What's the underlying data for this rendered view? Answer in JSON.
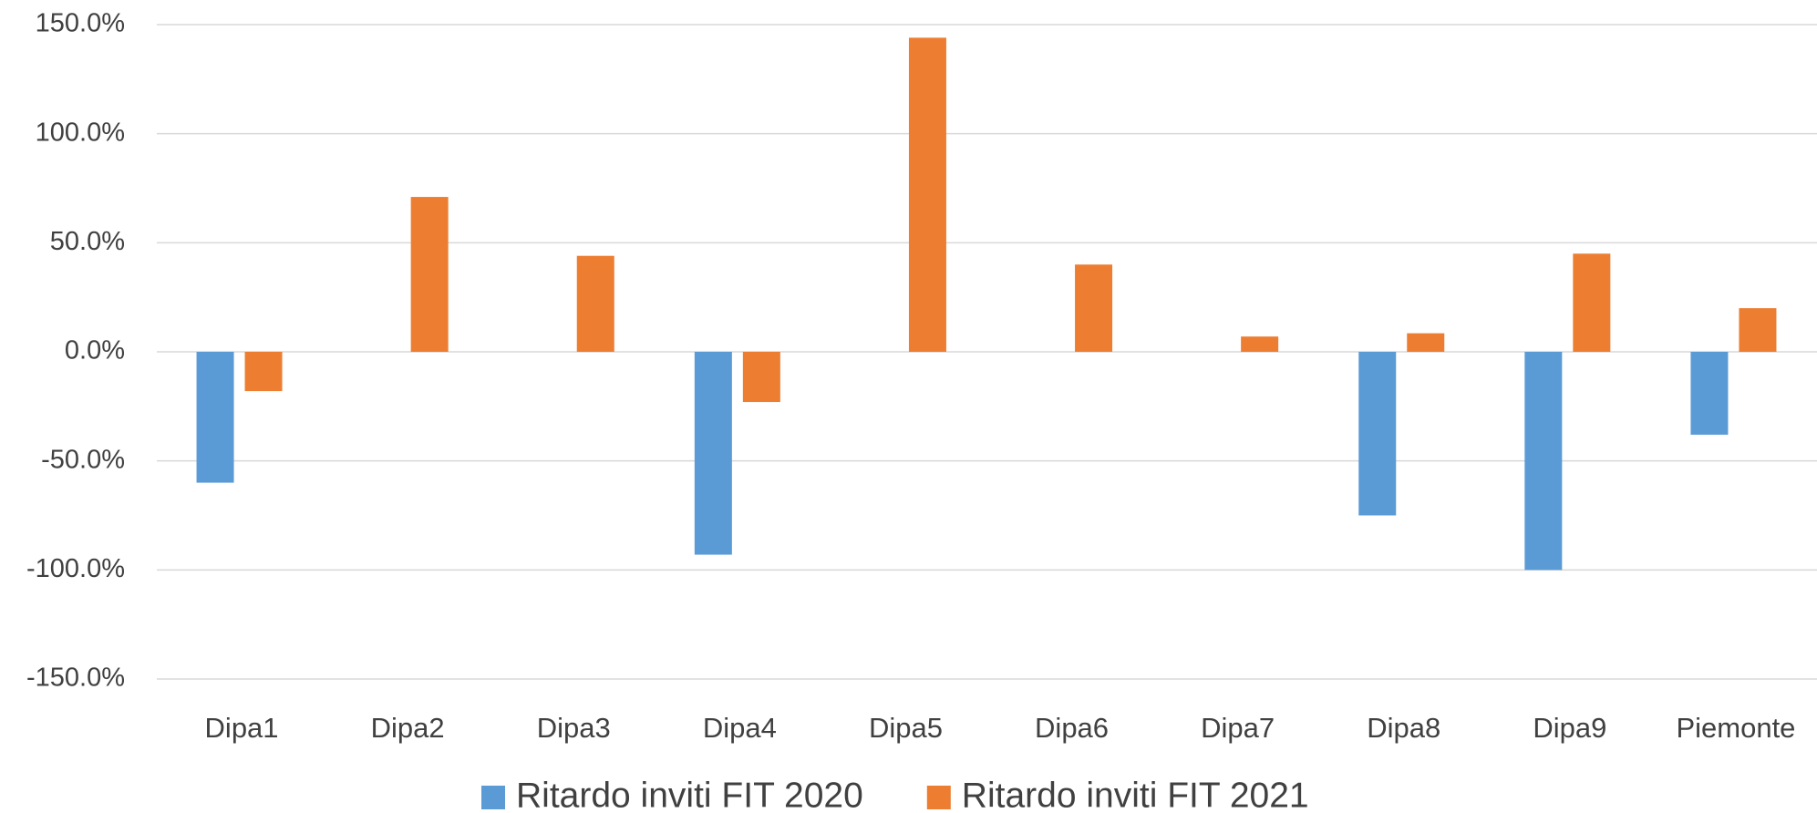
{
  "chart_data": {
    "type": "bar",
    "categories": [
      "Dipa1",
      "Dipa2",
      "Dipa3",
      "Dipa4",
      "Dipa5",
      "Dipa6",
      "Dipa7",
      "Dipa8",
      "Dipa9",
      "Piemonte"
    ],
    "series": [
      {
        "name": "Ritardo inviti FIT 2020",
        "color": "#5b9bd5",
        "values": [
          -60,
          null,
          null,
          -93,
          null,
          null,
          null,
          -75,
          -100,
          -38
        ]
      },
      {
        "name": "Ritardo inviti FIT 2021",
        "color": "#ed7d31",
        "values": [
          -18,
          71,
          44,
          -23,
          144,
          40,
          7,
          8.5,
          45,
          20
        ]
      }
    ],
    "ylim": [
      -150,
      150
    ],
    "yticks": [
      {
        "value": -150,
        "label": "-150.0%"
      },
      {
        "value": -100,
        "label": "-100.0%"
      },
      {
        "value": -50,
        "label": "-50.0%"
      },
      {
        "value": 0,
        "label": "0.0%"
      },
      {
        "value": 50,
        "label": "50.0%"
      },
      {
        "value": 100,
        "label": "100.0%"
      },
      {
        "value": 150,
        "label": "150.0%"
      }
    ],
    "grid": true,
    "legend": "bottom"
  }
}
